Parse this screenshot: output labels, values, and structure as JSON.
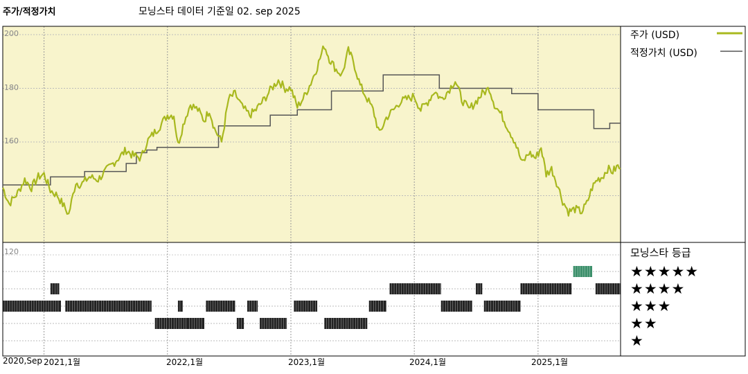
{
  "title": "주가/적정가치",
  "subtitle": "모닝스타 데이터 기준일 02. sep 2025",
  "legend": {
    "price_label": "주가 (USD)",
    "fair_label": "적정가치 (USD)",
    "price_color": "#a8b81e",
    "fair_color": "#555555"
  },
  "rating": {
    "title": "모닝스타 등급",
    "rows": [
      "★★★★★",
      "★★★★",
      "★★★",
      "★★",
      "★"
    ]
  },
  "chart_data": {
    "type": "line",
    "x_range": [
      "2020-09-01",
      "2025-09-02"
    ],
    "y_range": [
      120,
      200
    ],
    "y_ticks": [
      "200",
      "180",
      "160",
      "120"
    ],
    "x_ticks": [
      {
        "label": "2020,Sep",
        "date": "2020-09-01"
      },
      {
        "label": "2021,1월",
        "date": "2021-01-01"
      },
      {
        "label": "2022,1월",
        "date": "2022-01-01"
      },
      {
        "label": "2023,1월",
        "date": "2023-01-01"
      },
      {
        "label": "2024,1월",
        "date": "2024-01-01"
      },
      {
        "label": "2025,1월",
        "date": "2025-01-01"
      }
    ],
    "background_color": "#f8f4cc",
    "series": [
      {
        "name": "주가 (USD)",
        "color": "#a8b81e",
        "points": [
          [
            "2020-09-01",
            143
          ],
          [
            "2020-09-20",
            137
          ],
          [
            "2020-10-15",
            141
          ],
          [
            "2020-11-05",
            146
          ],
          [
            "2020-11-25",
            143
          ],
          [
            "2020-12-15",
            147
          ],
          [
            "2021-01-01",
            148
          ],
          [
            "2021-01-20",
            142
          ],
          [
            "2021-02-10",
            140
          ],
          [
            "2021-03-01",
            136
          ],
          [
            "2021-03-15",
            133
          ],
          [
            "2021-04-05",
            145
          ],
          [
            "2021-04-20",
            144
          ],
          [
            "2021-05-15",
            147
          ],
          [
            "2021-06-10",
            146
          ],
          [
            "2021-07-01",
            149
          ],
          [
            "2021-08-01",
            153
          ],
          [
            "2021-09-01",
            157
          ],
          [
            "2021-09-20",
            155
          ],
          [
            "2021-10-15",
            154
          ],
          [
            "2021-11-01",
            160
          ],
          [
            "2021-11-20",
            163
          ],
          [
            "2021-12-10",
            166
          ],
          [
            "2022-01-01",
            170
          ],
          [
            "2022-01-20",
            170
          ],
          [
            "2022-02-01",
            159
          ],
          [
            "2022-02-20",
            168
          ],
          [
            "2022-03-10",
            174
          ],
          [
            "2022-04-01",
            172
          ],
          [
            "2022-04-20",
            168
          ],
          [
            "2022-05-05",
            172
          ],
          [
            "2022-05-20",
            165
          ],
          [
            "2022-06-10",
            160
          ],
          [
            "2022-07-01",
            176
          ],
          [
            "2022-07-20",
            178
          ],
          [
            "2022-08-10",
            173
          ],
          [
            "2022-09-01",
            170
          ],
          [
            "2022-09-20",
            172
          ],
          [
            "2022-10-15",
            176
          ],
          [
            "2022-11-05",
            180
          ],
          [
            "2022-11-25",
            183
          ],
          [
            "2022-12-15",
            180
          ],
          [
            "2023-01-01",
            180
          ],
          [
            "2023-01-20",
            173
          ],
          [
            "2023-02-10",
            177
          ],
          [
            "2023-03-01",
            182
          ],
          [
            "2023-03-20",
            188
          ],
          [
            "2023-04-10",
            196
          ],
          [
            "2023-04-25",
            191
          ],
          [
            "2023-05-15",
            187
          ],
          [
            "2023-06-01",
            185
          ],
          [
            "2023-06-20",
            194
          ],
          [
            "2023-07-05",
            190
          ],
          [
            "2023-07-25",
            181
          ],
          [
            "2023-08-15",
            176
          ],
          [
            "2023-09-01",
            172
          ],
          [
            "2023-09-20",
            163
          ],
          [
            "2023-10-10",
            169
          ],
          [
            "2023-11-01",
            172
          ],
          [
            "2023-11-20",
            175
          ],
          [
            "2023-12-10",
            176
          ],
          [
            "2024-01-01",
            177
          ],
          [
            "2024-01-20",
            172
          ],
          [
            "2024-02-10",
            175
          ],
          [
            "2024-03-01",
            179
          ],
          [
            "2024-03-20",
            176
          ],
          [
            "2024-04-10",
            179
          ],
          [
            "2024-05-01",
            183
          ],
          [
            "2024-05-20",
            176
          ],
          [
            "2024-06-10",
            172
          ],
          [
            "2024-07-01",
            175
          ],
          [
            "2024-07-20",
            178
          ],
          [
            "2024-08-10",
            180
          ],
          [
            "2024-08-25",
            174
          ],
          [
            "2024-09-15",
            170
          ],
          [
            "2024-10-05",
            165
          ],
          [
            "2024-10-25",
            160
          ],
          [
            "2024-11-15",
            152
          ],
          [
            "2024-12-05",
            156
          ],
          [
            "2024-12-25",
            154
          ],
          [
            "2025-01-10",
            158
          ],
          [
            "2025-01-25",
            148
          ],
          [
            "2025-02-10",
            150
          ],
          [
            "2025-02-25",
            145
          ],
          [
            "2025-03-15",
            138
          ],
          [
            "2025-04-01",
            134
          ],
          [
            "2025-04-20",
            135
          ],
          [
            "2025-05-10",
            134
          ],
          [
            "2025-05-25",
            137
          ],
          [
            "2025-06-10",
            143
          ],
          [
            "2025-06-25",
            146
          ],
          [
            "2025-07-10",
            147
          ],
          [
            "2025-07-25",
            150
          ],
          [
            "2025-08-10",
            149
          ],
          [
            "2025-08-25",
            151
          ],
          [
            "2025-09-02",
            150
          ]
        ]
      },
      {
        "name": "적정가치 (USD)",
        "color": "#555555",
        "steps": [
          [
            "2020-09-01",
            144
          ],
          [
            "2021-01-20",
            147
          ],
          [
            "2021-05-01",
            149
          ],
          [
            "2021-09-01",
            152
          ],
          [
            "2021-10-01",
            156
          ],
          [
            "2021-11-01",
            157
          ],
          [
            "2021-12-01",
            158
          ],
          [
            "2022-06-01",
            166
          ],
          [
            "2022-11-01",
            170
          ],
          [
            "2023-01-20",
            172
          ],
          [
            "2023-05-01",
            179
          ],
          [
            "2023-10-01",
            185
          ],
          [
            "2024-03-15",
            180
          ],
          [
            "2024-10-15",
            178
          ],
          [
            "2025-01-01",
            172
          ],
          [
            "2025-06-15",
            165
          ],
          [
            "2025-08-01",
            167
          ],
          [
            "2025-09-02",
            167
          ]
        ]
      }
    ],
    "rating_history": [
      {
        "stars": 4,
        "from": "2021-01-20",
        "to": "2021-02-15"
      },
      {
        "stars": 3,
        "from": "2020-09-01",
        "to": "2021-02-20"
      },
      {
        "stars": 3,
        "from": "2021-03-05",
        "to": "2021-11-15"
      },
      {
        "stars": 2,
        "from": "2021-11-25",
        "to": "2022-03-20"
      },
      {
        "stars": 3,
        "from": "2022-02-01",
        "to": "2022-02-15"
      },
      {
        "stars": 2,
        "from": "2022-03-01",
        "to": "2022-04-20"
      },
      {
        "stars": 3,
        "from": "2022-04-25",
        "to": "2022-07-20"
      },
      {
        "stars": 2,
        "from": "2022-07-25",
        "to": "2022-08-15"
      },
      {
        "stars": 3,
        "from": "2022-08-25",
        "to": "2022-09-25"
      },
      {
        "stars": 2,
        "from": "2022-10-01",
        "to": "2022-12-20"
      },
      {
        "stars": 3,
        "from": "2023-01-10",
        "to": "2023-03-20"
      },
      {
        "stars": 2,
        "from": "2023-04-10",
        "to": "2023-08-15"
      },
      {
        "stars": 3,
        "from": "2023-08-20",
        "to": "2023-10-10"
      },
      {
        "stars": 4,
        "from": "2023-10-20",
        "to": "2024-03-20"
      },
      {
        "stars": 3,
        "from": "2024-03-20",
        "to": "2024-06-20"
      },
      {
        "stars": 4,
        "from": "2024-07-01",
        "to": "2024-07-20"
      },
      {
        "stars": 3,
        "from": "2024-07-25",
        "to": "2024-11-10"
      },
      {
        "stars": 4,
        "from": "2024-11-10",
        "to": "2025-04-10"
      },
      {
        "stars": 5,
        "from": "2025-04-15",
        "to": "2025-06-10"
      },
      {
        "stars": 4,
        "from": "2025-06-20",
        "to": "2025-09-02"
      }
    ]
  }
}
